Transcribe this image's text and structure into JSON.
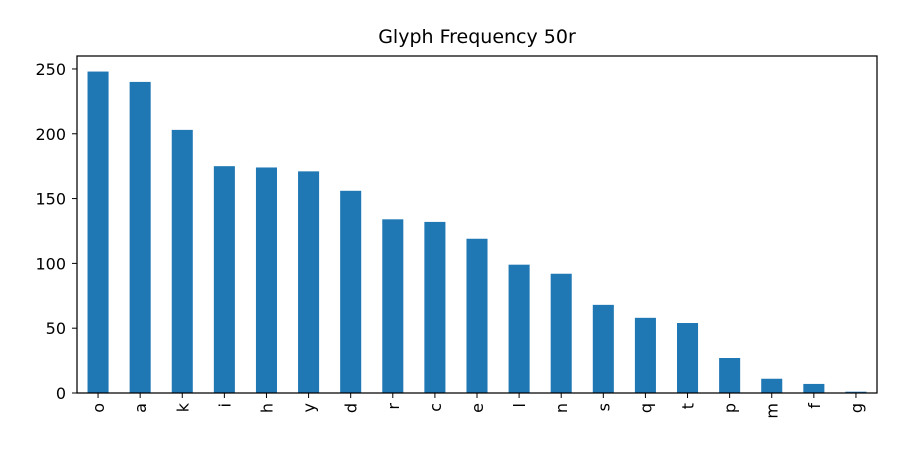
{
  "chart_data": {
    "type": "bar",
    "title": "Glyph Frequency 50r",
    "xlabel": "",
    "ylabel": "",
    "categories": [
      "o",
      "a",
      "k",
      "i",
      "h",
      "y",
      "d",
      "r",
      "c",
      "e",
      "l",
      "n",
      "s",
      "q",
      "t",
      "p",
      "m",
      "f",
      "g"
    ],
    "values": [
      248,
      240,
      203,
      175,
      174,
      171,
      156,
      134,
      132,
      119,
      99,
      92,
      68,
      58,
      54,
      27,
      11,
      7,
      1
    ],
    "ylim": [
      0,
      260
    ],
    "yticks": [
      0,
      50,
      100,
      150,
      200,
      250
    ],
    "ytick_labels": [
      "0",
      "50",
      "100",
      "150",
      "200",
      "250"
    ],
    "x_tick_rotation": "vertical",
    "grid": false,
    "legend": "none",
    "bar_color": "#1f77b4"
  }
}
